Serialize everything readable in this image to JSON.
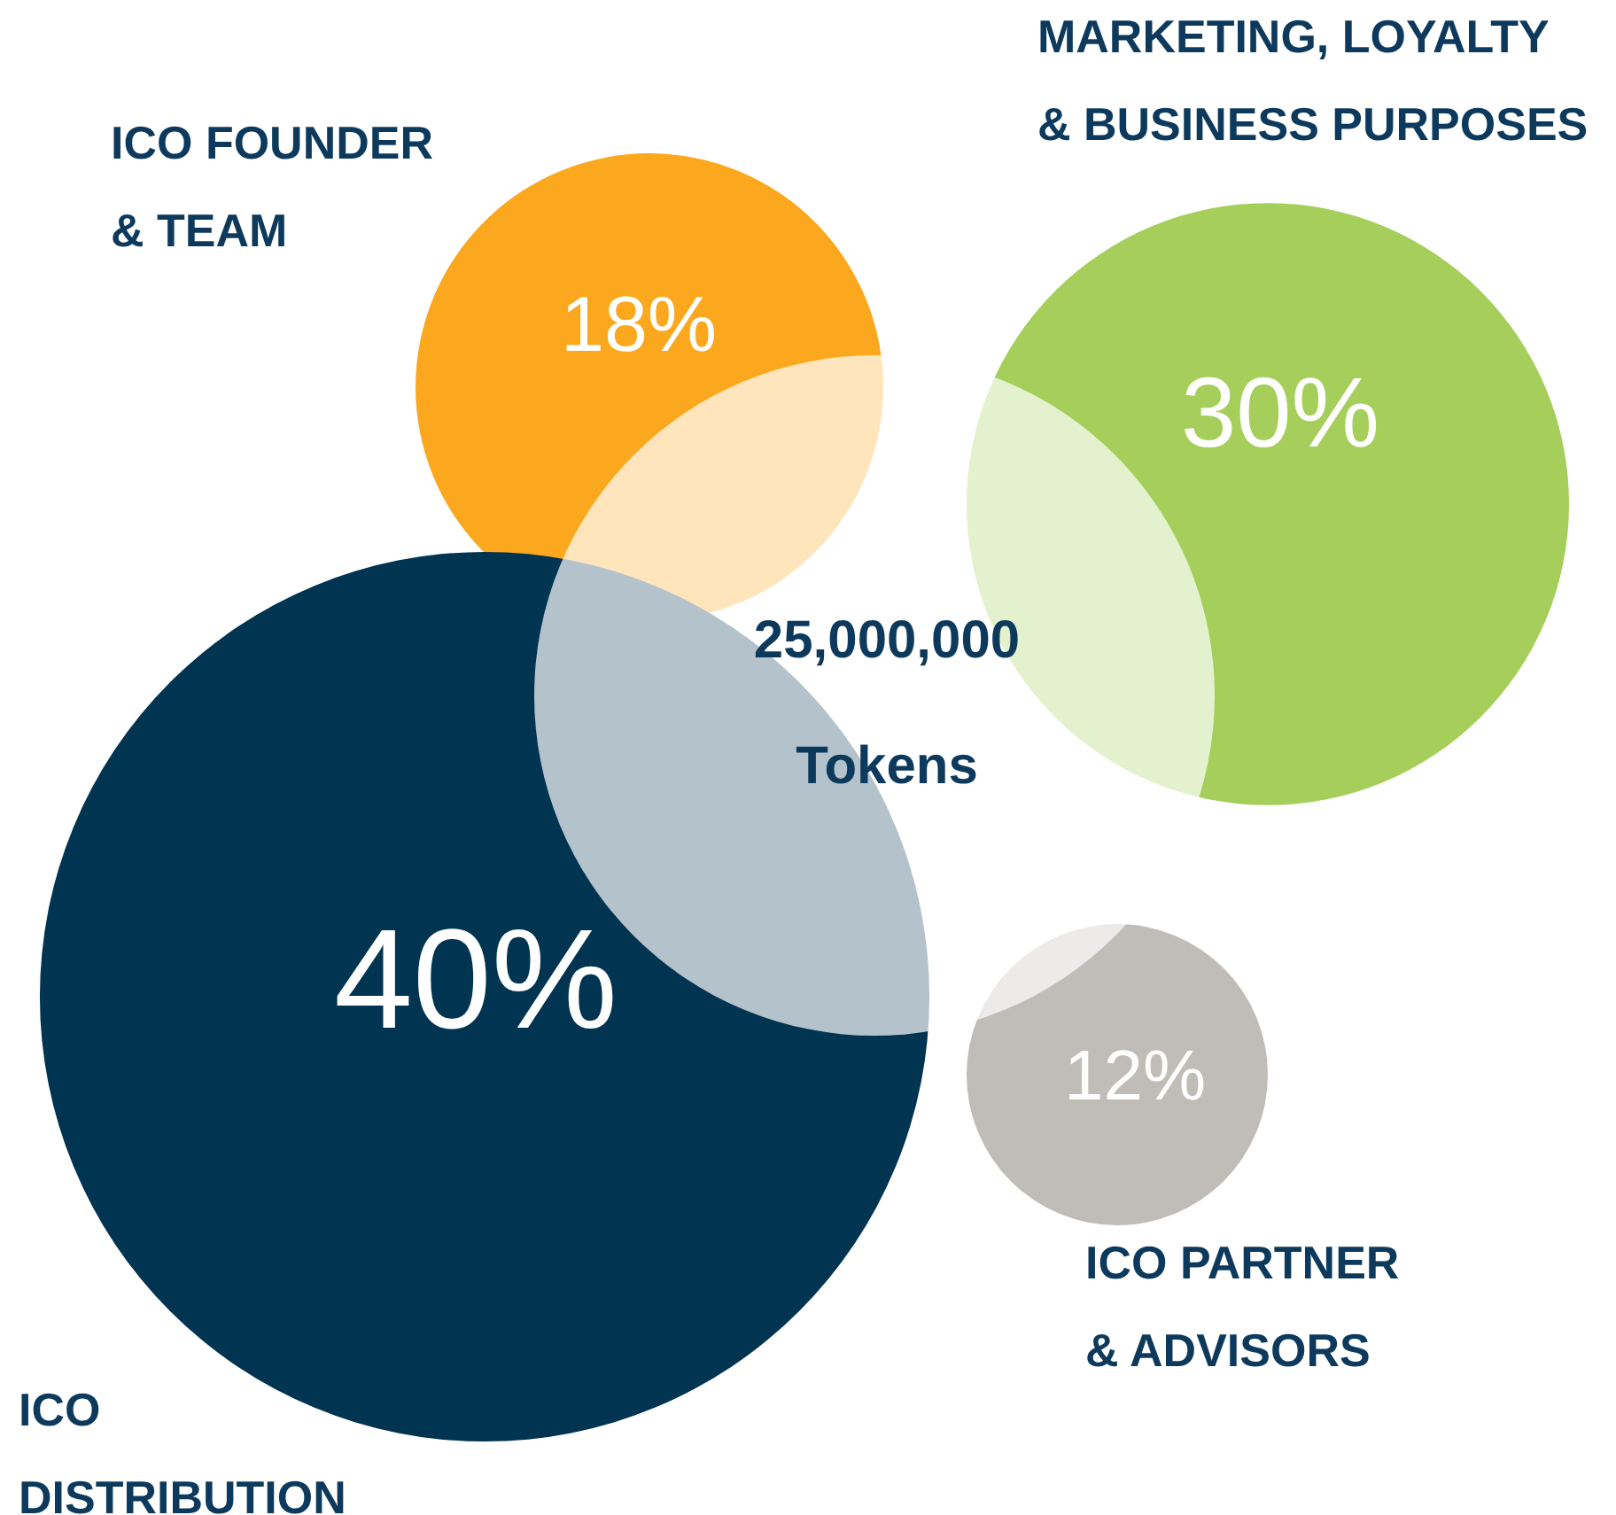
{
  "chart_data": {
    "type": "other",
    "categories": [
      "ICO\nDISTRIBUTION",
      "ICO FOUNDER\n& TEAM",
      "MARKETING, LOYALTY\n& BUSINESS PURPOSES",
      "ICO PARTNER\n& ADVISORS"
    ],
    "values": [
      40,
      18,
      30,
      12
    ],
    "value_labels": [
      "40%",
      "18%",
      "30%",
      "12%"
    ],
    "colors": [
      "#003451",
      "#fba81e",
      "#a5cf5a",
      "#c0bcb8"
    ],
    "annotations": [
      "25,000,000",
      "Tokens"
    ]
  }
}
